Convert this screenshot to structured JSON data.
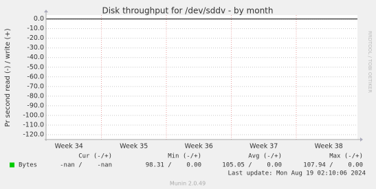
{
  "chart_data": {
    "type": "line",
    "title": "Disk throughput for /dev/sddv - by month",
    "y_label": "Pr second read (-) / write (+)",
    "categories": [
      "Week 34",
      "Week 35",
      "Week 36",
      "Week 37",
      "Week 38"
    ],
    "ylim": [
      -125,
      4
    ],
    "yticks": [
      {
        "value": 0,
        "label": "0.0"
      },
      {
        "value": -10,
        "label": "-10.0"
      },
      {
        "value": -20,
        "label": "-20.0"
      },
      {
        "value": -30,
        "label": "-30.0"
      },
      {
        "value": -40,
        "label": "-40.0"
      },
      {
        "value": -50,
        "label": "-50.0"
      },
      {
        "value": -60,
        "label": "-60.0"
      },
      {
        "value": -70,
        "label": "-70.0"
      },
      {
        "value": -80,
        "label": "-80.0"
      },
      {
        "value": -90,
        "label": "-90.0"
      },
      {
        "value": -100,
        "label": "-100.0"
      },
      {
        "value": -110,
        "label": "-110.0"
      },
      {
        "value": -120,
        "label": "-120.0"
      }
    ],
    "grid": true,
    "legend": {
      "headers": [
        "Cur (-/+)",
        "Min (-/+)",
        "Avg (-/+)",
        "Max (-/+)"
      ],
      "rows": [
        {
          "name": "Bytes",
          "color": "#00cc00",
          "cells": [
            "-nan /    -nan",
            "98.31 /    0.00",
            "105.05 /    0.00",
            "107.94 /    0.00"
          ]
        }
      ]
    },
    "last_update": "Last update: Mon Aug 19 02:10:06 2024",
    "watermark": "RRDTOOL / TOBI OETIKER",
    "footer": "Munin 2.0.49"
  }
}
